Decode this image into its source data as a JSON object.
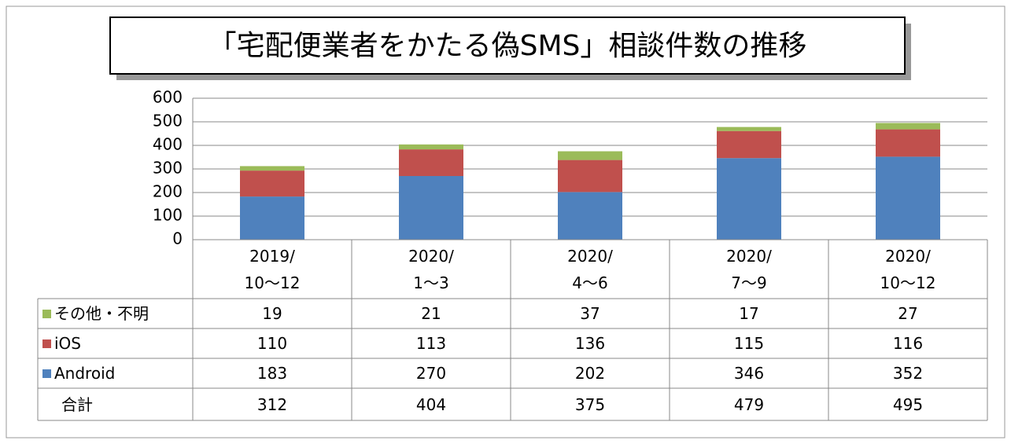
{
  "chart_data": {
    "type": "stacked_bar",
    "title": "「宅配便業者をかたる偽SMS」相談件数の推移",
    "categories": [
      "2019/\n10～12",
      "2020/\n1～3",
      "2020/\n4～6",
      "2020/\n7～9",
      "2020/\n10～12"
    ],
    "series": [
      {
        "name": "Android",
        "color": "#4f81bd",
        "values": [
          183,
          270,
          202,
          346,
          352
        ]
      },
      {
        "name": "iOS",
        "color": "#c0504d",
        "values": [
          110,
          113,
          136,
          115,
          116
        ]
      },
      {
        "name": "その他・不明",
        "color": "#9bbb59",
        "values": [
          19,
          21,
          37,
          17,
          27
        ]
      }
    ],
    "total_label": "合計",
    "totals": [
      312,
      404,
      375,
      479,
      495
    ],
    "ylim": [
      0,
      600
    ],
    "yticks": [
      0,
      100,
      200,
      300,
      400,
      500,
      600
    ],
    "grid": true
  }
}
